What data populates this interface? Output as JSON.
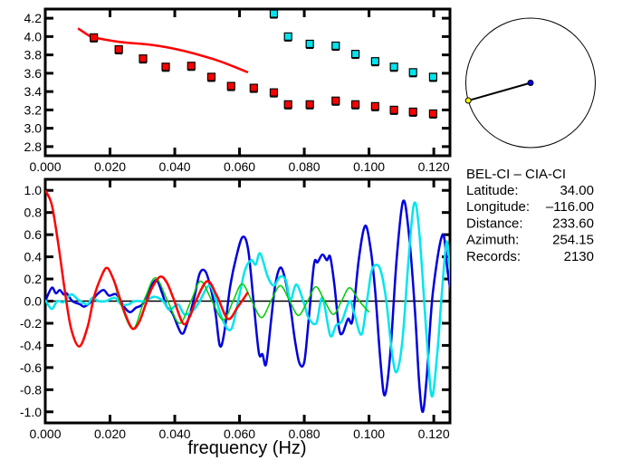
{
  "colors": {
    "red": "#ff0000",
    "cyan": "#00e5ee",
    "blue": "#0000dd",
    "green": "#00cc00",
    "axis": "#000000",
    "station_a": "#ffff00",
    "station_b": "#0000ff"
  },
  "info": {
    "title": "BEL-CI  –  CIA-CI",
    "rows": [
      {
        "label": "Latitude:",
        "value": "34.00"
      },
      {
        "label": "Longitude:",
        "value": "–116.00"
      },
      {
        "label": "Distance:",
        "value": "233.60"
      },
      {
        "label": "Azimuth:",
        "value": "254.15"
      },
      {
        "label": "Records:",
        "value": "2130"
      }
    ]
  },
  "azimuth_map": {
    "azimuth_deg": 254.15
  },
  "chart_data": [
    {
      "type": "scatter",
      "xlim": [
        0,
        0.125
      ],
      "ylim": [
        2.7,
        4.3
      ],
      "xticks": [
        "0.000",
        "0.020",
        "0.040",
        "0.060",
        "0.080",
        "0.100",
        "0.120"
      ],
      "yticks": [
        "2.8",
        "3.0",
        "3.2",
        "3.4",
        "3.6",
        "3.8",
        "4.0",
        "4.2"
      ],
      "grid": false,
      "series": [
        {
          "color": "red",
          "kind": "line",
          "points": [
            [
              0.0101,
              4.09
            ],
            [
              0.0131,
              4.02
            ],
            [
              0.015,
              3.99
            ],
            [
              0.0234,
              3.94
            ],
            [
              0.0327,
              3.91
            ],
            [
              0.0421,
              3.85
            ],
            [
              0.0514,
              3.76
            ],
            [
              0.057,
              3.69
            ],
            [
              0.0626,
              3.61
            ]
          ]
        },
        {
          "color": "red",
          "kind": "markers",
          "points": [
            [
              0.015,
              3.99
            ],
            [
              0.0227,
              3.86
            ],
            [
              0.0302,
              3.76
            ],
            [
              0.0372,
              3.67
            ],
            [
              0.0451,
              3.68
            ],
            [
              0.0513,
              3.56
            ],
            [
              0.0574,
              3.46
            ],
            [
              0.0644,
              3.44
            ],
            [
              0.0706,
              3.39
            ],
            [
              0.075,
              3.26
            ],
            [
              0.0817,
              3.26
            ],
            [
              0.0897,
              3.3
            ],
            [
              0.0958,
              3.26
            ],
            [
              0.1019,
              3.24
            ],
            [
              0.1077,
              3.2
            ],
            [
              0.1136,
              3.18
            ],
            [
              0.1198,
              3.16
            ]
          ]
        },
        {
          "color": "cyan",
          "kind": "markers",
          "points": [
            [
              0.0706,
              4.25
            ],
            [
              0.075,
              4.0
            ],
            [
              0.0817,
              3.92
            ],
            [
              0.0897,
              3.9
            ],
            [
              0.0958,
              3.81
            ],
            [
              0.1019,
              3.73
            ],
            [
              0.1077,
              3.67
            ],
            [
              0.1136,
              3.61
            ],
            [
              0.1198,
              3.56
            ]
          ]
        }
      ]
    },
    {
      "type": "line",
      "xlabel": "frequency (Hz)",
      "xlim": [
        0,
        0.125
      ],
      "ylim": [
        -1.1,
        1.1
      ],
      "xticks": [
        "0.000",
        "0.020",
        "0.040",
        "0.060",
        "0.080",
        "0.100",
        "0.120"
      ],
      "yticks": [
        "-1.0",
        "-0.8",
        "-0.6",
        "-0.4",
        "-0.2",
        "0.0",
        "0.2",
        "0.4",
        "0.6",
        "0.8",
        "1.0"
      ],
      "grid": false,
      "zero_line": true,
      "series": [
        {
          "color": "blue",
          "points": [
            [
              0,
              0
            ],
            [
              0.002,
              0.12
            ],
            [
              0.0033,
              0.07
            ],
            [
              0.0045,
              0.1
            ],
            [
              0.0057,
              0.06
            ],
            [
              0.0066,
              0.07
            ],
            [
              0.0084,
              0.0
            ],
            [
              0.0108,
              -0.03
            ],
            [
              0.012,
              -0.05
            ],
            [
              0.014,
              -0.01
            ],
            [
              0.016,
              0.06
            ],
            [
              0.018,
              0.1
            ],
            [
              0.0197,
              0.05
            ],
            [
              0.022,
              0.06
            ],
            [
              0.0243,
              -0.05
            ],
            [
              0.0262,
              -0.1
            ],
            [
              0.028,
              -0.06
            ],
            [
              0.03,
              -0.03
            ],
            [
              0.0318,
              0.08
            ],
            [
              0.0342,
              0.19
            ],
            [
              0.036,
              0.08
            ],
            [
              0.0375,
              -0.05
            ],
            [
              0.0393,
              -0.11
            ],
            [
              0.042,
              -0.29
            ],
            [
              0.0436,
              -0.22
            ],
            [
              0.046,
              0.03
            ],
            [
              0.0477,
              0.25
            ],
            [
              0.0494,
              0.27
            ],
            [
              0.051,
              0.13
            ],
            [
              0.0526,
              -0.11
            ],
            [
              0.0539,
              -0.4
            ],
            [
              0.0552,
              -0.3
            ],
            [
              0.0571,
              0.13
            ],
            [
              0.059,
              0.4
            ],
            [
              0.061,
              0.58
            ],
            [
              0.0627,
              0.46
            ],
            [
              0.0645,
              -0.06
            ],
            [
              0.066,
              -0.47
            ],
            [
              0.0671,
              -0.48
            ],
            [
              0.0682,
              -0.57
            ],
            [
              0.0697,
              -0.19
            ],
            [
              0.071,
              0.14
            ],
            [
              0.0725,
              0.3
            ],
            [
              0.0739,
              0.22
            ],
            [
              0.0757,
              -0.05
            ],
            [
              0.0771,
              -0.35
            ],
            [
              0.0785,
              -0.56
            ],
            [
              0.08,
              -0.55
            ],
            [
              0.0813,
              -0.19
            ],
            [
              0.083,
              0.33
            ],
            [
              0.0841,
              0.35
            ],
            [
              0.0856,
              0.42
            ],
            [
              0.087,
              0.37
            ],
            [
              0.088,
              0.4
            ],
            [
              0.0893,
              0.15
            ],
            [
              0.0907,
              -0.24
            ],
            [
              0.0918,
              -0.29
            ],
            [
              0.0935,
              -0.16
            ],
            [
              0.0949,
              -0.17
            ],
            [
              0.0968,
              0.37
            ],
            [
              0.0988,
              0.68
            ],
            [
              0.1005,
              0.47
            ],
            [
              0.1019,
              0.09
            ],
            [
              0.1036,
              -0.57
            ],
            [
              0.1049,
              -0.85
            ],
            [
              0.1066,
              -0.46
            ],
            [
              0.1085,
              0.37
            ],
            [
              0.1105,
              0.9
            ],
            [
              0.1122,
              0.64
            ],
            [
              0.1141,
              -0.05
            ],
            [
              0.1155,
              -0.74
            ],
            [
              0.1166,
              -1.0
            ],
            [
              0.1178,
              -0.69
            ],
            [
              0.1197,
              0.07
            ],
            [
              0.1227,
              0.6
            ],
            [
              0.1243,
              0.26
            ],
            [
              0.1253,
              0.07
            ]
          ]
        },
        {
          "color": "cyan",
          "points": [
            [
              0,
              0.01
            ],
            [
              0.002,
              -0.07
            ],
            [
              0.0037,
              0.0
            ],
            [
              0.0056,
              -0.01
            ],
            [
              0.008,
              0.06
            ],
            [
              0.0103,
              0.01
            ],
            [
              0.013,
              -0.03
            ],
            [
              0.0145,
              0.03
            ],
            [
              0.0164,
              0.0
            ],
            [
              0.0187,
              0.0
            ],
            [
              0.0215,
              0.03
            ],
            [
              0.0234,
              -0.03
            ],
            [
              0.0257,
              -0.03
            ],
            [
              0.0276,
              0.0
            ],
            [
              0.0308,
              0.0
            ],
            [
              0.0336,
              0.04
            ],
            [
              0.0364,
              0.0
            ],
            [
              0.0383,
              -0.08
            ],
            [
              0.041,
              -0.03
            ],
            [
              0.043,
              -0.12
            ],
            [
              0.0458,
              -0.08
            ],
            [
              0.0477,
              0.0
            ],
            [
              0.0505,
              0.14
            ],
            [
              0.0523,
              0.05
            ],
            [
              0.0551,
              -0.19
            ],
            [
              0.0575,
              -0.25
            ],
            [
              0.0598,
              0.03
            ],
            [
              0.0617,
              0.28
            ],
            [
              0.0636,
              0.37
            ],
            [
              0.065,
              0.33
            ],
            [
              0.0664,
              0.43
            ],
            [
              0.0687,
              0.22
            ],
            [
              0.0706,
              0.14
            ],
            [
              0.0725,
              0.22
            ],
            [
              0.0743,
              0.19
            ],
            [
              0.0757,
              0.01
            ],
            [
              0.0776,
              0.15
            ],
            [
              0.08,
              -0.03
            ],
            [
              0.0813,
              -0.15
            ],
            [
              0.0837,
              -0.2
            ],
            [
              0.0856,
              0.03
            ],
            [
              0.088,
              -0.31
            ],
            [
              0.0898,
              -0.22
            ],
            [
              0.0916,
              -0.18
            ],
            [
              0.094,
              0.0
            ],
            [
              0.0954,
              -0.11
            ],
            [
              0.0977,
              -0.3
            ],
            [
              0.0996,
              0.05
            ],
            [
              0.101,
              0.29
            ],
            [
              0.1033,
              0.3
            ],
            [
              0.1052,
              0.03
            ],
            [
              0.1071,
              -0.47
            ],
            [
              0.1085,
              -0.64
            ],
            [
              0.1103,
              -0.36
            ],
            [
              0.1122,
              0.37
            ],
            [
              0.1139,
              0.88
            ],
            [
              0.1155,
              0.63
            ],
            [
              0.1178,
              -0.33
            ],
            [
              0.1194,
              -0.86
            ],
            [
              0.1211,
              -0.46
            ],
            [
              0.1225,
              0.08
            ],
            [
              0.1239,
              0.53
            ],
            [
              0.1248,
              0.35
            ],
            [
              0.1253,
              0.1
            ]
          ]
        },
        {
          "color": "green",
          "points": [
            [
              0.0085,
              -0.3
            ],
            [
              0.0105,
              -0.41
            ],
            [
              0.013,
              -0.24
            ],
            [
              0.0148,
              0.0
            ],
            [
              0.017,
              0.2
            ],
            [
              0.019,
              0.3
            ],
            [
              0.021,
              0.2
            ],
            [
              0.023,
              0.0
            ],
            [
              0.027,
              -0.25
            ],
            [
              0.0305,
              0.0
            ],
            [
              0.034,
              0.21
            ],
            [
              0.0378,
              0.0
            ],
            [
              0.0415,
              -0.2
            ],
            [
              0.045,
              0.0
            ],
            [
              0.048,
              0.18
            ],
            [
              0.0515,
              0.0
            ],
            [
              0.055,
              -0.17
            ],
            [
              0.058,
              0.0
            ],
            [
              0.0608,
              0.155
            ],
            [
              0.0638,
              0.0
            ],
            [
              0.0668,
              -0.15
            ],
            [
              0.0697,
              0.0
            ],
            [
              0.0726,
              0.14
            ],
            [
              0.0755,
              0.0
            ],
            [
              0.0782,
              -0.13
            ],
            [
              0.081,
              0.0
            ],
            [
              0.0836,
              0.13
            ],
            [
              0.0863,
              0.0
            ],
            [
              0.089,
              -0.12
            ],
            [
              0.0915,
              0.0
            ],
            [
              0.094,
              0.12
            ],
            [
              0.097,
              0.0
            ],
            [
              0.1,
              -0.1
            ]
          ]
        },
        {
          "color": "red",
          "points": [
            [
              0,
              1.0
            ],
            [
              0.002,
              0.87
            ],
            [
              0.004,
              0.52
            ],
            [
              0.006,
              0.1
            ],
            [
              0.008,
              -0.25
            ],
            [
              0.0105,
              -0.41
            ],
            [
              0.013,
              -0.24
            ],
            [
              0.015,
              0.03
            ],
            [
              0.017,
              0.2
            ],
            [
              0.019,
              0.3
            ],
            [
              0.021,
              0.2
            ],
            [
              0.023,
              0.03
            ],
            [
              0.025,
              -0.14
            ],
            [
              0.027,
              -0.25
            ],
            [
              0.029,
              -0.19
            ],
            [
              0.031,
              -0.03
            ],
            [
              0.033,
              0.12
            ],
            [
              0.0355,
              0.22
            ],
            [
              0.0375,
              0.17
            ],
            [
              0.0395,
              0.03
            ],
            [
              0.0425,
              -0.2
            ],
            [
              0.0445,
              -0.15
            ],
            [
              0.0465,
              0.0
            ],
            [
              0.05,
              0.18
            ],
            [
              0.053,
              0.05
            ],
            [
              0.0564,
              -0.16
            ],
            [
              0.0595,
              -0.05
            ],
            [
              0.0626,
              0.08
            ]
          ]
        }
      ]
    }
  ]
}
